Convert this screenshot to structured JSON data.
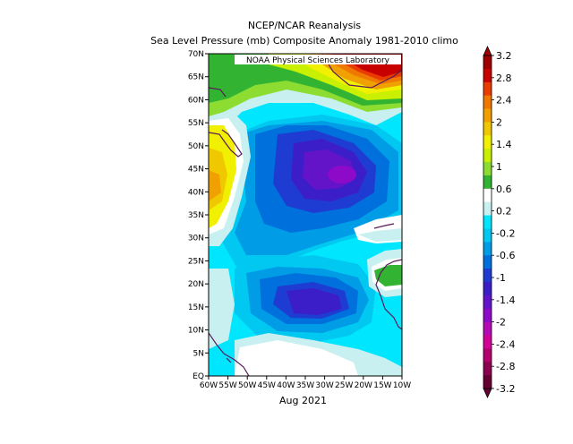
{
  "title": {
    "line1": "NCEP/NCAR Reanalysis",
    "line2": "Sea Level Pressure (mb) Composite Anomaly 1981-2010 climo"
  },
  "credit": "NOAA Physical Sciences Laboratory",
  "period": "Aug 2021",
  "lat_ticks": [
    "70N",
    "65N",
    "60N",
    "55N",
    "50N",
    "45N",
    "40N",
    "35N",
    "30N",
    "25N",
    "20N",
    "15N",
    "10N",
    "5N",
    "EQ"
  ],
  "lon_ticks": [
    "60W",
    "55W",
    "50W",
    "45W",
    "40W",
    "35W",
    "30W",
    "25W",
    "20W",
    "15W",
    "10W"
  ],
  "colorbar": {
    "labels": [
      "3.2",
      "2.8",
      "2.4",
      "2",
      "1.4",
      "1",
      "0.6",
      "0.2",
      "-0.2",
      "-0.6",
      "-1",
      "-1.4",
      "-2",
      "-2.4",
      "-2.8",
      "-3.2"
    ],
    "colors": [
      "#a00000",
      "#c80000",
      "#e83c00",
      "#f07800",
      "#f0a000",
      "#f0c800",
      "#f0f000",
      "#c8f000",
      "#8cdc32",
      "#32b432",
      "#ffffff",
      "#c8f0f0",
      "#00e6ff",
      "#00c8f0",
      "#009ce6",
      "#0070dc",
      "#1e3cd2",
      "#3c1ec8",
      "#6414c8",
      "#8c0ac8",
      "#b40ab4",
      "#d20096",
      "#b4006e",
      "#8c0050",
      "#640032"
    ]
  },
  "colors": {
    "strong_high": "#c80000",
    "strong_low": "#6414c8",
    "neutral": "#ffffff"
  }
}
